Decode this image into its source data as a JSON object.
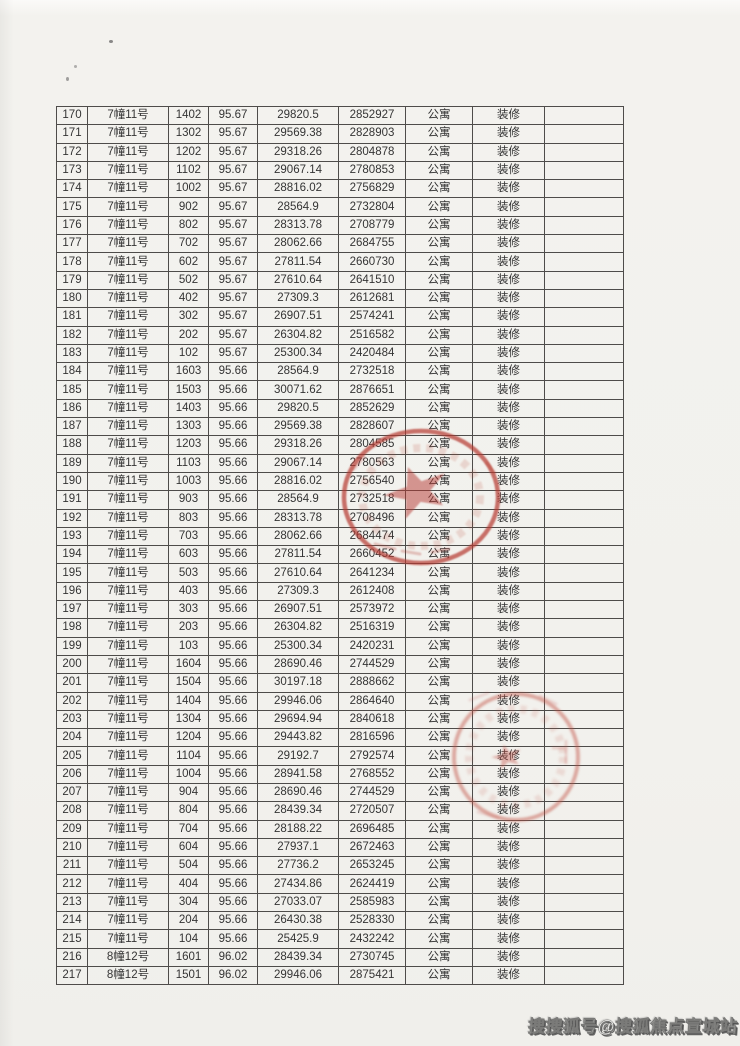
{
  "page": {
    "kind": "scanned price list (continuation page, no header row visible)",
    "paper_color": "#f2f1ed",
    "border_color": "#4e4c4a",
    "text_color": "#343434"
  },
  "table": {
    "rows": [
      [
        "170",
        "7幢11号",
        "1402",
        "95.67",
        "29820.5",
        "2852927",
        "公寓",
        "装修",
        ""
      ],
      [
        "171",
        "7幢11号",
        "1302",
        "95.67",
        "29569.38",
        "2828903",
        "公寓",
        "装修",
        ""
      ],
      [
        "172",
        "7幢11号",
        "1202",
        "95.67",
        "29318.26",
        "2804878",
        "公寓",
        "装修",
        ""
      ],
      [
        "173",
        "7幢11号",
        "1102",
        "95.67",
        "29067.14",
        "2780853",
        "公寓",
        "装修",
        ""
      ],
      [
        "174",
        "7幢11号",
        "1002",
        "95.67",
        "28816.02",
        "2756829",
        "公寓",
        "装修",
        ""
      ],
      [
        "175",
        "7幢11号",
        "902",
        "95.67",
        "28564.9",
        "2732804",
        "公寓",
        "装修",
        ""
      ],
      [
        "176",
        "7幢11号",
        "802",
        "95.67",
        "28313.78",
        "2708779",
        "公寓",
        "装修",
        ""
      ],
      [
        "177",
        "7幢11号",
        "702",
        "95.67",
        "28062.66",
        "2684755",
        "公寓",
        "装修",
        ""
      ],
      [
        "178",
        "7幢11号",
        "602",
        "95.67",
        "27811.54",
        "2660730",
        "公寓",
        "装修",
        ""
      ],
      [
        "179",
        "7幢11号",
        "502",
        "95.67",
        "27610.64",
        "2641510",
        "公寓",
        "装修",
        ""
      ],
      [
        "180",
        "7幢11号",
        "402",
        "95.67",
        "27309.3",
        "2612681",
        "公寓",
        "装修",
        ""
      ],
      [
        "181",
        "7幢11号",
        "302",
        "95.67",
        "26907.51",
        "2574241",
        "公寓",
        "装修",
        ""
      ],
      [
        "182",
        "7幢11号",
        "202",
        "95.67",
        "26304.82",
        "2516582",
        "公寓",
        "装修",
        ""
      ],
      [
        "183",
        "7幢11号",
        "102",
        "95.67",
        "25300.34",
        "2420484",
        "公寓",
        "装修",
        ""
      ],
      [
        "184",
        "7幢11号",
        "1603",
        "95.66",
        "28564.9",
        "2732518",
        "公寓",
        "装修",
        ""
      ],
      [
        "185",
        "7幢11号",
        "1503",
        "95.66",
        "30071.62",
        "2876651",
        "公寓",
        "装修",
        ""
      ],
      [
        "186",
        "7幢11号",
        "1403",
        "95.66",
        "29820.5",
        "2852629",
        "公寓",
        "装修",
        ""
      ],
      [
        "187",
        "7幢11号",
        "1303",
        "95.66",
        "29569.38",
        "2828607",
        "公寓",
        "装修",
        ""
      ],
      [
        "188",
        "7幢11号",
        "1203",
        "95.66",
        "29318.26",
        "2804585",
        "公寓",
        "装修",
        ""
      ],
      [
        "189",
        "7幢11号",
        "1103",
        "95.66",
        "29067.14",
        "2780563",
        "公寓",
        "装修",
        ""
      ],
      [
        "190",
        "7幢11号",
        "1003",
        "95.66",
        "28816.02",
        "2756540",
        "公寓",
        "装修",
        ""
      ],
      [
        "191",
        "7幢11号",
        "903",
        "95.66",
        "28564.9",
        "2732518",
        "公寓",
        "装修",
        ""
      ],
      [
        "192",
        "7幢11号",
        "803",
        "95.66",
        "28313.78",
        "2708496",
        "公寓",
        "装修",
        ""
      ],
      [
        "193",
        "7幢11号",
        "703",
        "95.66",
        "28062.66",
        "2684474",
        "公寓",
        "装修",
        ""
      ],
      [
        "194",
        "7幢11号",
        "603",
        "95.66",
        "27811.54",
        "2660452",
        "公寓",
        "装修",
        ""
      ],
      [
        "195",
        "7幢11号",
        "503",
        "95.66",
        "27610.64",
        "2641234",
        "公寓",
        "装修",
        ""
      ],
      [
        "196",
        "7幢11号",
        "403",
        "95.66",
        "27309.3",
        "2612408",
        "公寓",
        "装修",
        ""
      ],
      [
        "197",
        "7幢11号",
        "303",
        "95.66",
        "26907.51",
        "2573972",
        "公寓",
        "装修",
        ""
      ],
      [
        "198",
        "7幢11号",
        "203",
        "95.66",
        "26304.82",
        "2516319",
        "公寓",
        "装修",
        ""
      ],
      [
        "199",
        "7幢11号",
        "103",
        "95.66",
        "25300.34",
        "2420231",
        "公寓",
        "装修",
        ""
      ],
      [
        "200",
        "7幢11号",
        "1604",
        "95.66",
        "28690.46",
        "2744529",
        "公寓",
        "装修",
        ""
      ],
      [
        "201",
        "7幢11号",
        "1504",
        "95.66",
        "30197.18",
        "2888662",
        "公寓",
        "装修",
        ""
      ],
      [
        "202",
        "7幢11号",
        "1404",
        "95.66",
        "29946.06",
        "2864640",
        "公寓",
        "装修",
        ""
      ],
      [
        "203",
        "7幢11号",
        "1304",
        "95.66",
        "29694.94",
        "2840618",
        "公寓",
        "装修",
        ""
      ],
      [
        "204",
        "7幢11号",
        "1204",
        "95.66",
        "29443.82",
        "2816596",
        "公寓",
        "装修",
        ""
      ],
      [
        "205",
        "7幢11号",
        "1104",
        "95.66",
        "29192.7",
        "2792574",
        "公寓",
        "装修",
        ""
      ],
      [
        "206",
        "7幢11号",
        "1004",
        "95.66",
        "28941.58",
        "2768552",
        "公寓",
        "装修",
        ""
      ],
      [
        "207",
        "7幢11号",
        "904",
        "95.66",
        "28690.46",
        "2744529",
        "公寓",
        "装修",
        ""
      ],
      [
        "208",
        "7幢11号",
        "804",
        "95.66",
        "28439.34",
        "2720507",
        "公寓",
        "装修",
        ""
      ],
      [
        "209",
        "7幢11号",
        "704",
        "95.66",
        "28188.22",
        "2696485",
        "公寓",
        "装修",
        ""
      ],
      [
        "210",
        "7幢11号",
        "604",
        "95.66",
        "27937.1",
        "2672463",
        "公寓",
        "装修",
        ""
      ],
      [
        "211",
        "7幢11号",
        "504",
        "95.66",
        "27736.2",
        "2653245",
        "公寓",
        "装修",
        ""
      ],
      [
        "212",
        "7幢11号",
        "404",
        "95.66",
        "27434.86",
        "2624419",
        "公寓",
        "装修",
        ""
      ],
      [
        "213",
        "7幢11号",
        "304",
        "95.66",
        "27033.07",
        "2585983",
        "公寓",
        "装修",
        ""
      ],
      [
        "214",
        "7幢11号",
        "204",
        "95.66",
        "26430.38",
        "2528330",
        "公寓",
        "装修",
        ""
      ],
      [
        "215",
        "7幢11号",
        "104",
        "95.66",
        "25425.9",
        "2432242",
        "公寓",
        "装修",
        ""
      ],
      [
        "216",
        "8幢12号",
        "1601",
        "96.02",
        "28439.34",
        "2730745",
        "公寓",
        "装修",
        ""
      ],
      [
        "217",
        "8幢12号",
        "1501",
        "96.02",
        "29946.06",
        "2875421",
        "公寓",
        "装修",
        ""
      ]
    ]
  },
  "stamps": {
    "count": 2,
    "color_primary": "#b5392f",
    "color_secondary": "#c24f43",
    "text_legible": false
  },
  "watermark": {
    "text": "搜搜狐号@搜狐焦点宣城站"
  }
}
